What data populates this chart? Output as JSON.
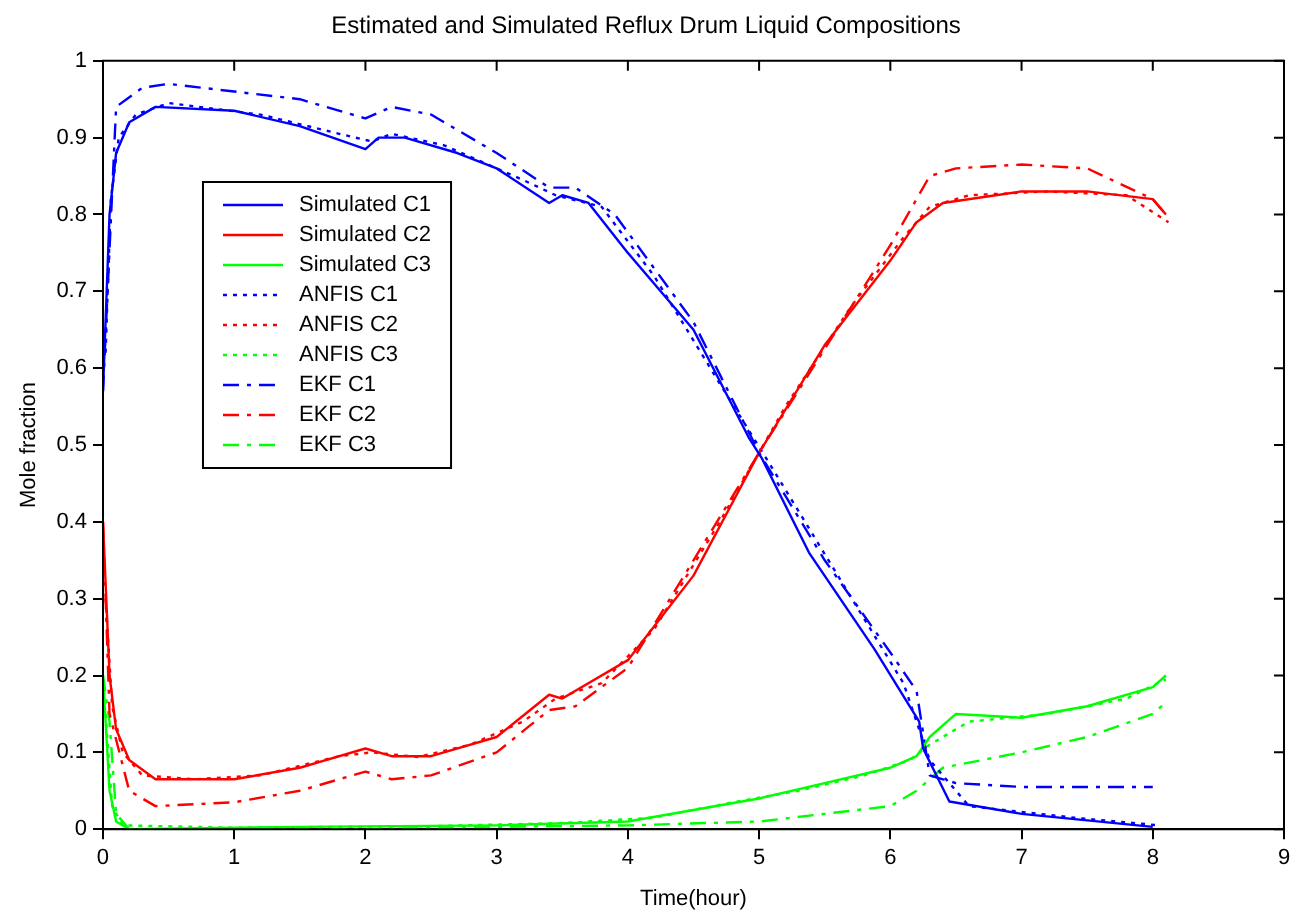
{
  "chart_data": {
    "type": "line",
    "title": "Estimated and Simulated Reflux Drum Liquid Compositions",
    "xlabel": "Time(hour)",
    "ylabel": "Mole fraction",
    "xlim": [
      0,
      9
    ],
    "xticks": [
      0,
      1,
      2,
      3,
      4,
      5,
      6,
      7,
      8,
      9
    ],
    "ylim": [
      0,
      1
    ],
    "yticks": [
      0,
      0.1,
      0.2,
      0.3,
      0.4,
      0.5,
      0.6,
      0.7,
      0.8,
      0.9,
      1
    ],
    "grid": false,
    "legend": "left",
    "marker": "none",
    "series": [
      {
        "name": "Simulated C1",
        "color": "#0000ff",
        "line_style": "solid",
        "x": [
          0,
          0.05,
          0.1,
          0.2,
          0.4,
          1,
          1.5,
          2,
          2.1,
          2.3,
          2.7,
          3,
          3.4,
          3.5,
          3.7,
          4,
          4.5,
          4.92,
          5.02,
          5.38,
          5.88,
          6.22,
          6.25,
          6.45,
          7,
          8
        ],
        "values": [
          0.57,
          0.8,
          0.88,
          0.92,
          0.94,
          0.935,
          0.915,
          0.885,
          0.9,
          0.9,
          0.88,
          0.86,
          0.815,
          0.825,
          0.815,
          0.75,
          0.65,
          0.51,
          0.483,
          0.36,
          0.234,
          0.14,
          0.105,
          0.036,
          0.02,
          0.003
        ]
      },
      {
        "name": "Simulated C2",
        "color": "#ff0000",
        "line_style": "solid",
        "x": [
          0,
          0.05,
          0.1,
          0.2,
          0.4,
          1,
          1.5,
          2,
          2.2,
          2.5,
          3,
          3.4,
          3.5,
          4,
          4.5,
          5,
          5.5,
          6,
          6.2,
          6.4,
          7,
          7.5,
          8,
          8.1
        ],
        "values": [
          0.4,
          0.2,
          0.13,
          0.09,
          0.065,
          0.065,
          0.08,
          0.105,
          0.095,
          0.095,
          0.12,
          0.175,
          0.17,
          0.22,
          0.33,
          0.49,
          0.63,
          0.74,
          0.79,
          0.815,
          0.83,
          0.83,
          0.82,
          0.8
        ]
      },
      {
        "name": "Simulated C3",
        "color": "#00ff00",
        "line_style": "solid",
        "x": [
          0,
          0.05,
          0.1,
          0.2,
          1.5,
          3,
          4,
          4.5,
          5,
          5.5,
          6,
          6.2,
          6.3,
          6.5,
          7,
          7.5,
          8,
          8.1
        ],
        "values": [
          0.2,
          0.05,
          0.01,
          0,
          0.003,
          0.005,
          0.01,
          0.025,
          0.04,
          0.06,
          0.08,
          0.095,
          0.12,
          0.15,
          0.145,
          0.16,
          0.185,
          0.2
        ]
      },
      {
        "name": "ANFIS C1",
        "color": "#0000ff",
        "line_style": "dotted",
        "x": [
          0.02,
          0.06,
          0.12,
          0.25,
          0.5,
          1.2,
          1.8,
          2.05,
          2.2,
          2.6,
          3.2,
          3.45,
          3.8,
          4.2,
          4.7,
          5.1,
          5.6,
          6.1,
          6.3,
          6.6,
          7.4,
          8.05
        ],
        "values": [
          0.62,
          0.82,
          0.9,
          0.93,
          0.945,
          0.93,
          0.905,
          0.895,
          0.905,
          0.89,
          0.845,
          0.825,
          0.81,
          0.72,
          0.58,
          0.47,
          0.33,
          0.19,
          0.09,
          0.03,
          0.015,
          0.005
        ]
      },
      {
        "name": "ANFIS C2",
        "color": "#ff0000",
        "line_style": "dotted",
        "x": [
          0.02,
          0.07,
          0.15,
          0.3,
          0.7,
          1.2,
          1.8,
          2.05,
          2.4,
          2.8,
          3.2,
          3.45,
          3.8,
          4.2,
          4.7,
          5.2,
          5.7,
          6.1,
          6.3,
          6.6,
          7.2,
          7.8,
          8.12
        ],
        "values": [
          0.3,
          0.16,
          0.1,
          0.07,
          0.065,
          0.07,
          0.095,
          0.1,
          0.094,
          0.11,
          0.14,
          0.17,
          0.19,
          0.26,
          0.4,
          0.55,
          0.68,
          0.77,
          0.81,
          0.825,
          0.83,
          0.825,
          0.79
        ]
      },
      {
        "name": "ANFIS C3",
        "color": "#00ff00",
        "line_style": "dotted",
        "x": [
          0.02,
          0.07,
          0.15,
          1,
          2.5,
          3.5,
          4.2,
          4.8,
          5.3,
          5.8,
          6.15,
          6.3,
          6.6,
          7.2,
          7.8,
          8.1
        ],
        "values": [
          0.15,
          0.03,
          0.005,
          0.002,
          0.004,
          0.008,
          0.015,
          0.035,
          0.05,
          0.07,
          0.09,
          0.11,
          0.14,
          0.15,
          0.17,
          0.195
        ]
      },
      {
        "name": "EKF C1",
        "color": "#0000ff",
        "line_style": "dashed",
        "x": [
          0,
          0.1,
          0.3,
          0.5,
          1,
          1.5,
          2,
          2.2,
          2.5,
          3,
          3.4,
          3.6,
          3.9,
          4.5,
          5,
          5.5,
          6,
          6.2,
          6.3,
          6.5,
          7,
          8
        ],
        "values": [
          0.57,
          0.94,
          0.965,
          0.97,
          0.96,
          0.95,
          0.925,
          0.94,
          0.93,
          0.88,
          0.835,
          0.835,
          0.8,
          0.66,
          0.49,
          0.35,
          0.23,
          0.18,
          0.07,
          0.06,
          0.055,
          0.055
        ]
      },
      {
        "name": "EKF C2",
        "color": "#ff0000",
        "line_style": "dashed",
        "x": [
          0,
          0.05,
          0.2,
          0.4,
          1,
          1.5,
          2,
          2.2,
          2.5,
          3,
          3.4,
          3.6,
          4,
          5,
          6,
          6.2,
          6.3,
          6.5,
          7,
          7.5,
          8,
          8.1
        ],
        "values": [
          0.4,
          0.15,
          0.05,
          0.03,
          0.035,
          0.05,
          0.075,
          0.065,
          0.07,
          0.1,
          0.155,
          0.16,
          0.21,
          0.49,
          0.76,
          0.82,
          0.85,
          0.86,
          0.865,
          0.86,
          0.82,
          0.8
        ]
      },
      {
        "name": "EKF C3",
        "color": "#00ff00",
        "line_style": "dashed",
        "x": [
          0,
          0.05,
          0.1,
          0.2,
          2,
          3,
          4,
          5,
          5.5,
          6,
          6.2,
          6.4,
          7,
          7.5,
          8,
          8.1
        ],
        "values": [
          0.2,
          0.14,
          0.02,
          0,
          0,
          0.003,
          0.005,
          0.01,
          0.02,
          0.03,
          0.05,
          0.08,
          0.1,
          0.12,
          0.15,
          0.165
        ]
      }
    ]
  }
}
